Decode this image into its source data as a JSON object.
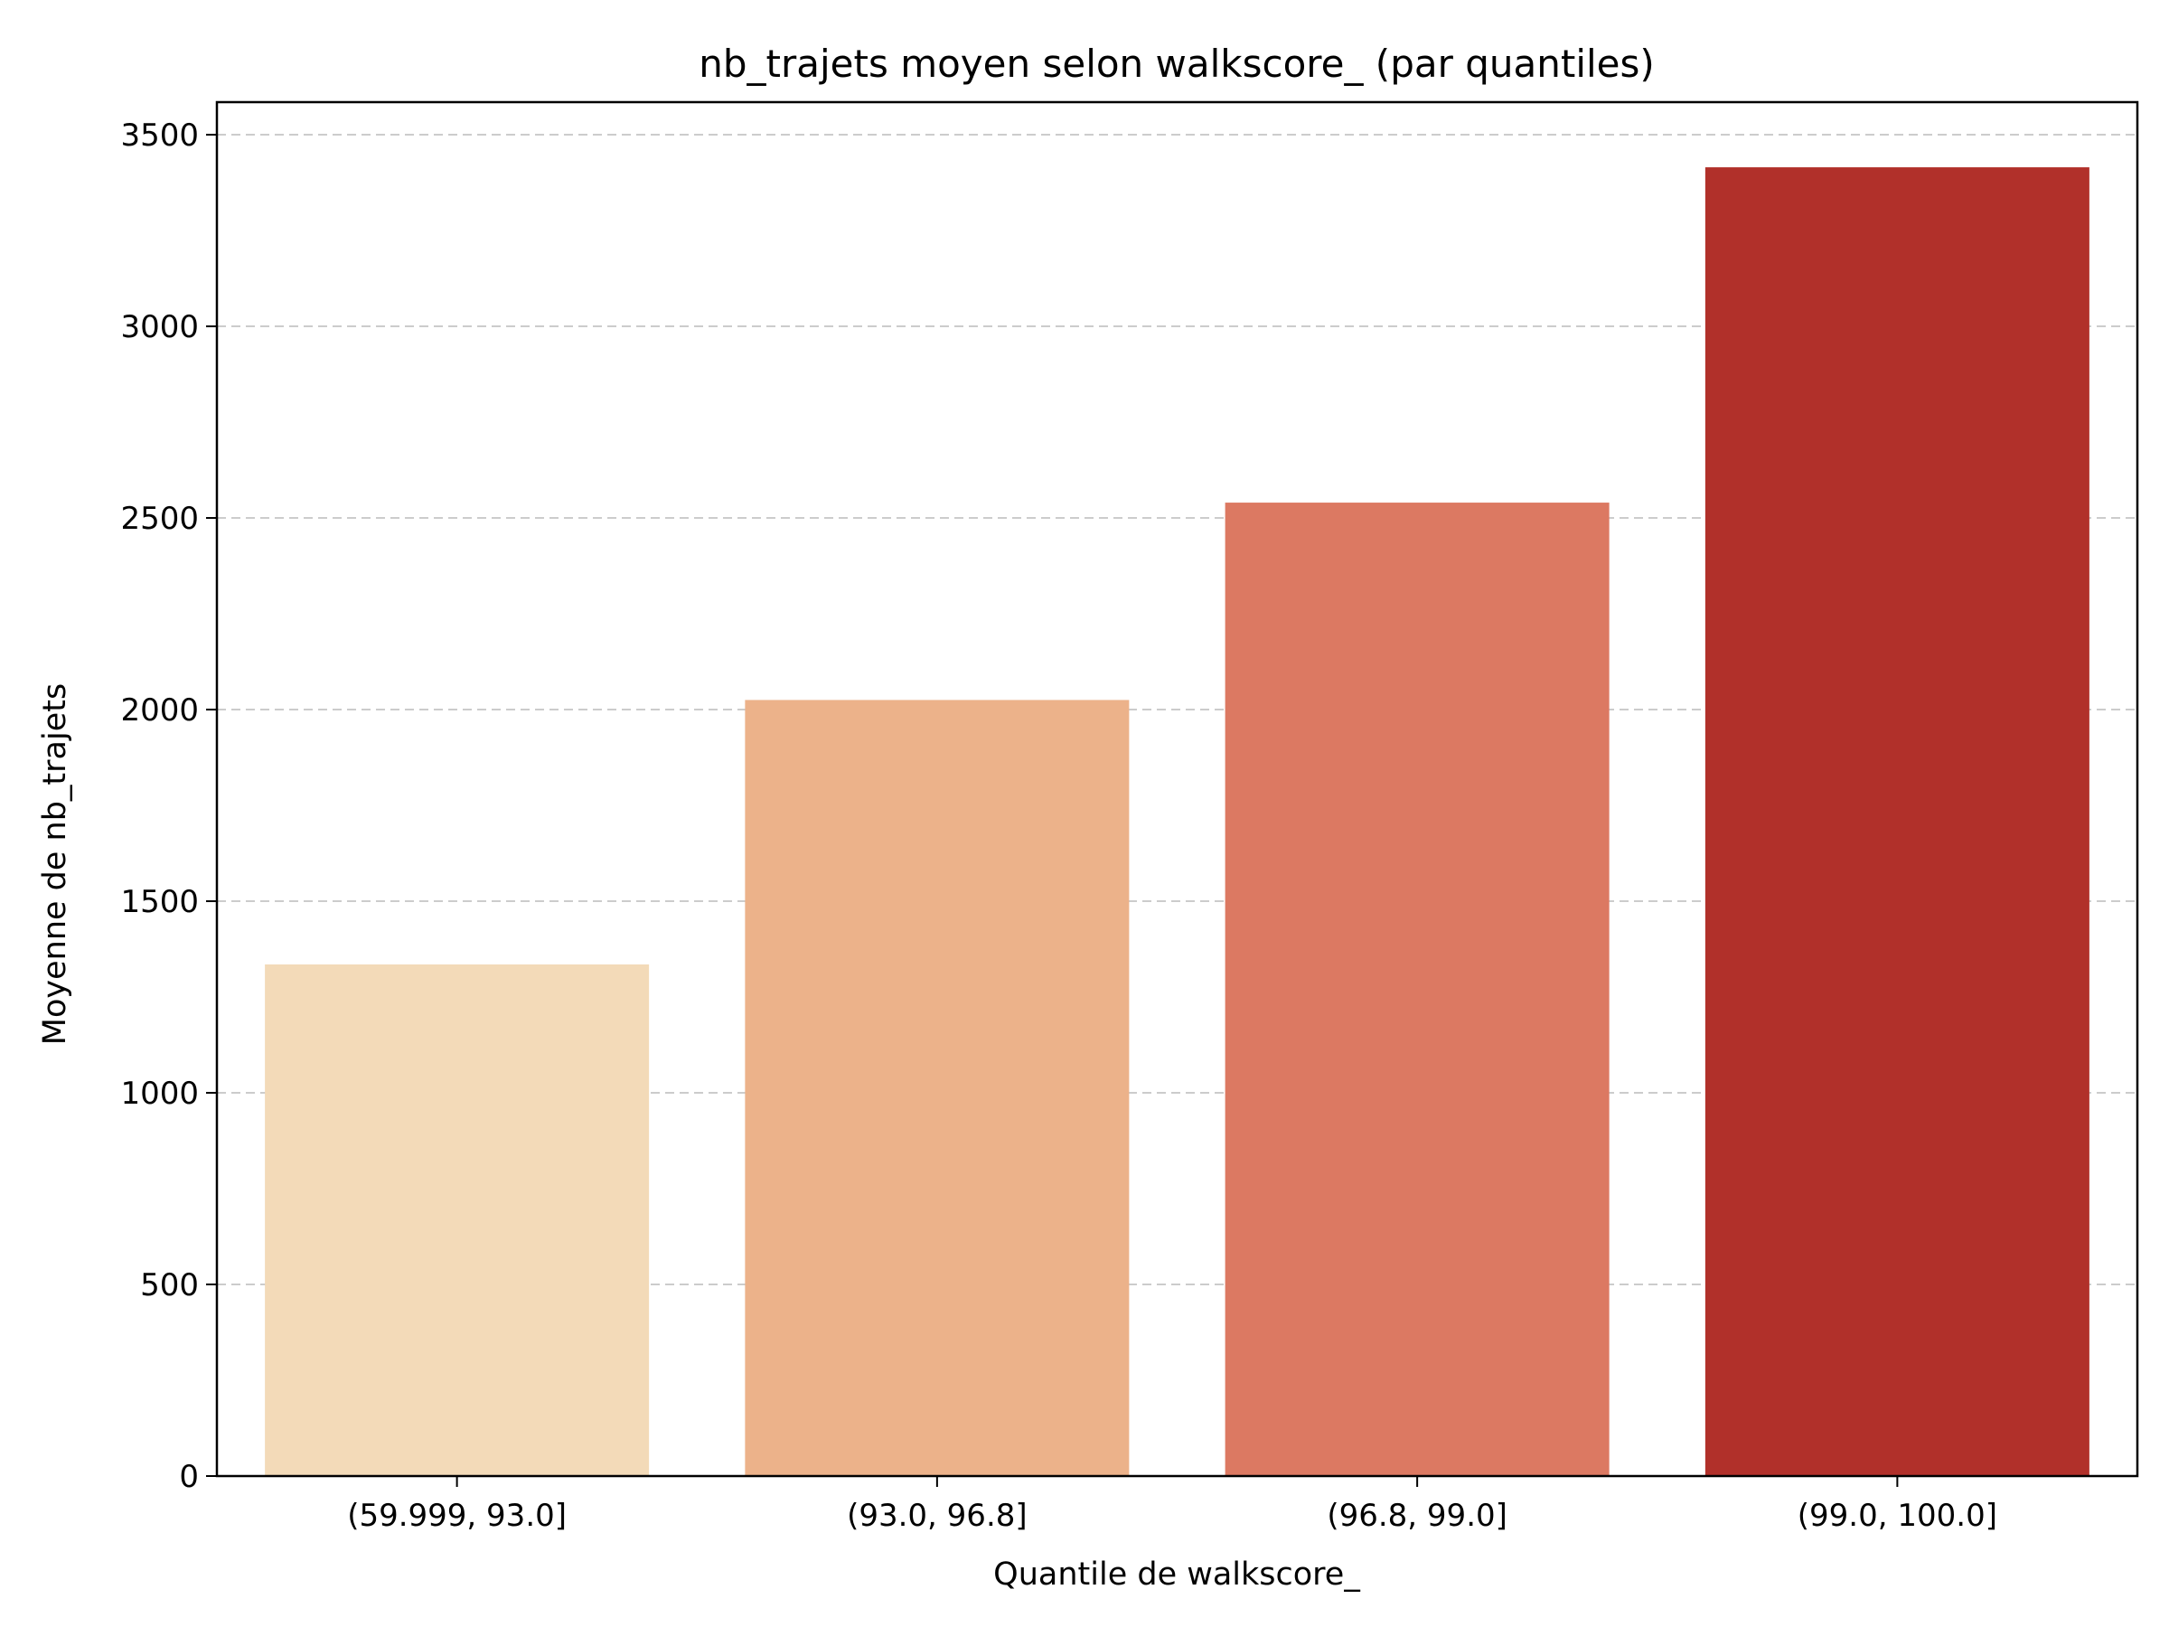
{
  "chart_data": {
    "type": "bar",
    "title": "nb_trajets moyen selon walkscore_ (par quantiles)",
    "xlabel": "Quantile de walkscore_",
    "ylabel": "Moyenne de nb_trajets",
    "categories": [
      "(59.999, 93.0]",
      "(93.0, 96.8]",
      "(96.8, 99.0]",
      "(99.0, 100.0]"
    ],
    "values": [
      1335,
      2025,
      2540,
      3415
    ],
    "colors": [
      "#f3dab8",
      "#ecb28a",
      "#dc7962",
      "#b1302a"
    ],
    "yticks": [
      0,
      500,
      1000,
      1500,
      2000,
      2500,
      3000,
      3500
    ],
    "ylim": [
      0,
      3585
    ],
    "grid": "y-dashed",
    "legend": "none"
  }
}
